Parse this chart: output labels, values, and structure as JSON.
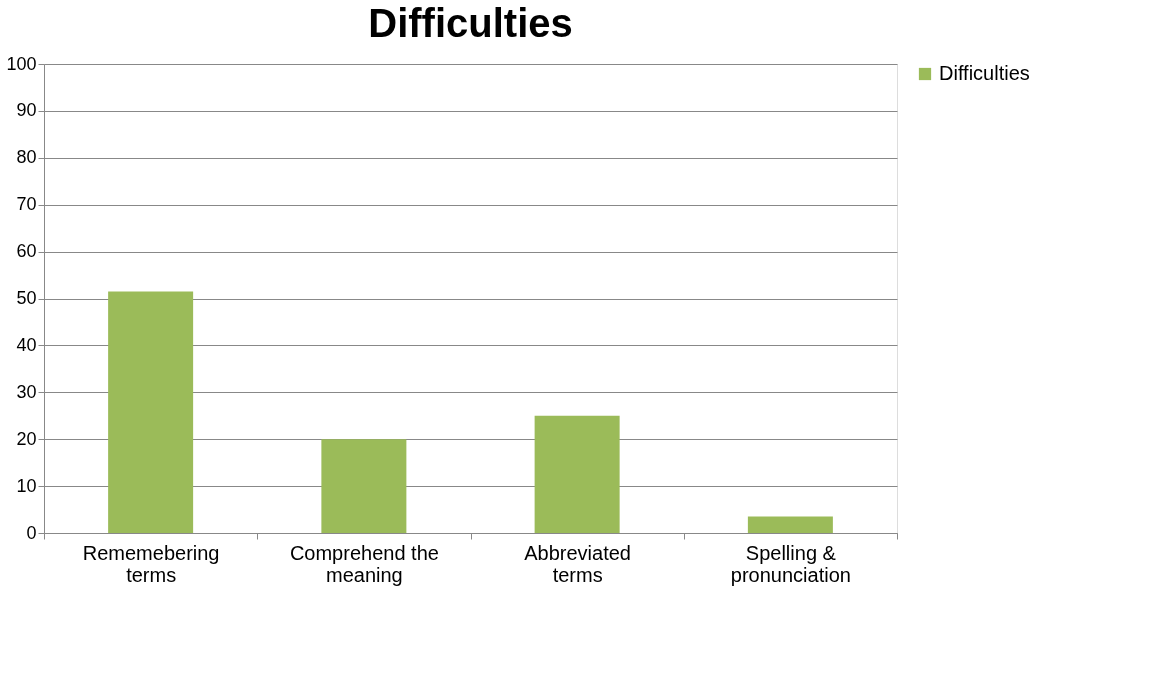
{
  "chart_data": {
    "type": "bar",
    "title": "Difficulties",
    "categories": [
      "Rememebering terms",
      "Comprehend the meaning",
      "Abbreviated terms",
      "Spelling & pronunciation"
    ],
    "series": [
      {
        "name": "Difficulties",
        "color": "#9bbb59",
        "values": [
          51.5,
          20,
          25,
          3.5
        ]
      }
    ],
    "ylim": [
      0,
      100
    ],
    "yticks": [
      0,
      10,
      20,
      30,
      40,
      50,
      60,
      70,
      80,
      90,
      100
    ],
    "grid": "y",
    "legend": "right"
  }
}
